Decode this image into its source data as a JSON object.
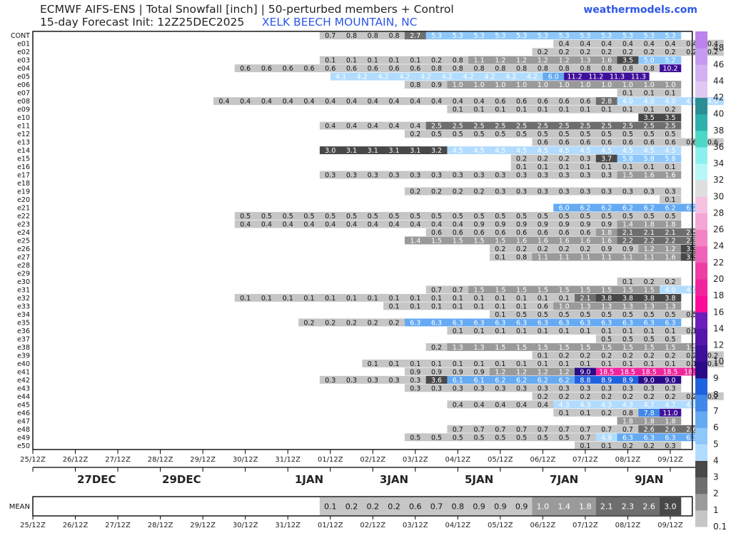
{
  "header": {
    "line1": "ECMWF AIFS-ENS | Total Snowfall [inch] | 50-perturbed members + Control",
    "line2_prefix": "15-day Forecast Init: 12Z25DEC2025",
    "location": "XELK BEECH MOUNTAIN, NC",
    "brand": "weathermodels.com"
  },
  "chart_data": {
    "type": "heatmap",
    "units": "inch",
    "x_ticks": [
      "25/12Z",
      "26/12Z",
      "27/12Z",
      "28/12Z",
      "29/12Z",
      "30/12Z",
      "31/12Z",
      "01/12Z",
      "02/12Z",
      "03/12Z",
      "04/12Z",
      "05/12Z",
      "06/12Z",
      "07/12Z",
      "08/12Z",
      "09/12Z"
    ],
    "date_labels": [
      {
        "label": "27DEC",
        "day": 2
      },
      {
        "label": "29DEC",
        "day": 4
      },
      {
        "label": "1JAN",
        "day": 7
      },
      {
        "label": "3JAN",
        "day": 9
      },
      {
        "label": "5JAN",
        "day": 11
      },
      {
        "label": "7JAN",
        "day": 13
      },
      {
        "label": "9JAN",
        "day": 15
      }
    ],
    "members": [
      {
        "name": "CONT",
        "start": 7.0,
        "values": [
          0.7,
          0.8,
          0.8,
          0.8,
          2.7,
          5.3,
          5.3,
          5.3,
          5.3,
          5.3,
          5.3,
          5.3,
          5.3,
          5.3,
          5.3,
          5.3,
          5.3
        ]
      },
      {
        "name": "e01",
        "start": 12.5,
        "values": [
          0.4,
          0.4,
          0.4,
          0.4,
          0.4,
          0.4,
          0.4,
          0.4
        ]
      },
      {
        "name": "e02",
        "start": 12.0,
        "values": [
          0.2,
          0.2,
          0.2,
          0.2,
          0.2,
          0.2,
          0.2,
          0.2,
          0.2
        ]
      },
      {
        "name": "e03",
        "start": 7.0,
        "values": [
          0.1,
          0.1,
          0.1,
          0.1,
          0.1,
          0.2,
          0.8,
          1.1,
          1.2,
          1.2,
          1.2,
          1.2,
          1.3,
          1.6,
          3.5,
          5.0,
          5.2
        ]
      },
      {
        "name": "e04",
        "start": 5.0,
        "values": [
          0.6,
          0.6,
          0.6,
          0.6,
          0.6,
          0.6,
          0.6,
          0.6,
          0.6,
          0.8,
          0.8,
          0.8,
          0.8,
          0.8,
          0.8,
          0.8,
          0.8,
          0.8,
          0.8,
          0.8,
          10.2
        ]
      },
      {
        "name": "e05",
        "start": 7.25,
        "values": [
          4.1,
          4.2,
          4.2,
          4.2,
          4.2,
          4.2,
          4.2,
          4.2,
          4.2,
          4.2,
          6.0,
          11.2,
          11.2,
          11.3,
          11.3
        ]
      },
      {
        "name": "e06",
        "start": 9.0,
        "values": [
          0.8,
          0.9,
          1.0,
          1.0,
          1.0,
          1.0,
          1.0,
          1.0,
          1.0,
          1.0,
          1.0,
          1.0,
          1.0
        ]
      },
      {
        "name": "e07",
        "start": 14.0,
        "values": [
          0.1,
          0.1,
          0.1
        ]
      },
      {
        "name": "e08",
        "start": 4.5,
        "values": [
          0.4,
          0.4,
          0.4,
          0.4,
          0.4,
          0.4,
          0.4,
          0.4,
          0.4,
          0.4,
          0.4,
          0.4,
          0.4,
          0.6,
          0.6,
          0.6,
          0.6,
          0.6,
          2.8,
          4.0,
          4.0,
          4.0,
          4.0,
          4.0
        ]
      },
      {
        "name": "e09",
        "start": 10.0,
        "values": [
          0.1,
          0.1,
          0.1,
          0.1,
          0.1,
          0.1,
          0.1,
          0.1,
          0.1,
          0.1,
          0.2
        ]
      },
      {
        "name": "e10",
        "start": 14.5,
        "values": [
          3.5,
          3.5
        ]
      },
      {
        "name": "e11",
        "start": 7.0,
        "values": [
          0.4,
          0.4,
          0.4,
          0.4,
          0.4,
          2.5,
          2.5,
          2.5,
          2.5,
          2.5,
          2.5,
          2.5,
          2.5,
          2.5,
          2.5,
          2.5,
          2.5
        ]
      },
      {
        "name": "e12",
        "start": 9.0,
        "values": [
          0.2,
          0.5,
          0.5,
          0.5,
          0.5,
          0.5,
          0.5,
          0.5,
          0.5,
          0.5,
          0.5,
          0.5,
          0.5
        ]
      },
      {
        "name": "e13",
        "start": 12.0,
        "values": [
          0.6,
          0.6,
          0.6,
          0.6,
          0.6,
          0.6,
          0.6,
          0.6,
          0.6
        ]
      },
      {
        "name": "e14",
        "start": 7.0,
        "values": [
          3.0,
          3.1,
          3.1,
          3.1,
          3.1,
          3.2,
          4.5,
          4.5,
          4.5,
          4.5,
          4.5,
          4.5,
          4.5,
          4.5,
          4.5,
          4.5,
          4.5
        ]
      },
      {
        "name": "e15",
        "start": 11.5,
        "values": [
          0.2,
          0.2,
          0.2,
          0.3,
          3.7,
          5.8,
          5.8,
          5.8
        ]
      },
      {
        "name": "e16",
        "start": 11.5,
        "values": [
          0.1,
          0.1,
          0.1,
          0.1,
          0.1,
          0.1,
          0.1,
          0.1
        ]
      },
      {
        "name": "e17",
        "start": 7.0,
        "values": [
          0.3,
          0.3,
          0.3,
          0.3,
          0.3,
          0.3,
          0.3,
          0.3,
          0.3,
          0.3,
          0.3,
          0.3,
          0.3,
          0.3,
          1.5,
          1.6,
          1.6
        ]
      },
      {
        "name": "e18",
        "start": null,
        "values": []
      },
      {
        "name": "e19",
        "start": 9.0,
        "values": [
          0.2,
          0.2,
          0.2,
          0.2,
          0.3,
          0.3,
          0.3,
          0.3,
          0.3,
          0.3,
          0.3,
          0.3,
          0.3
        ]
      },
      {
        "name": "e20",
        "start": 15.0,
        "values": [
          0.1
        ]
      },
      {
        "name": "e21",
        "start": 12.5,
        "values": [
          6.0,
          6.2,
          6.2,
          6.2,
          6.2,
          6.2,
          6.2
        ]
      },
      {
        "name": "e22",
        "start": 5.0,
        "values": [
          0.5,
          0.5,
          0.5,
          0.5,
          0.5,
          0.5,
          0.5,
          0.5,
          0.5,
          0.5,
          0.5,
          0.5,
          0.5,
          0.5,
          0.5,
          0.5,
          0.5,
          0.5,
          0.5,
          0.5,
          0.5
        ]
      },
      {
        "name": "e23",
        "start": 5.0,
        "values": [
          0.4,
          0.4,
          0.4,
          0.4,
          0.4,
          0.4,
          0.4,
          0.4,
          0.4,
          0.4,
          0.4,
          0.9,
          0.9,
          0.9,
          0.9,
          0.9,
          0.9,
          0.9,
          1.4,
          1.8,
          1.8
        ]
      },
      {
        "name": "e24",
        "start": 9.5,
        "values": [
          0.6,
          0.6,
          0.6,
          0.6,
          0.6,
          0.6,
          0.6,
          0.6,
          1.8,
          2.1,
          2.1,
          2.1,
          2.5
        ]
      },
      {
        "name": "e25",
        "start": 9.0,
        "values": [
          1.4,
          1.5,
          1.5,
          1.5,
          1.5,
          1.6,
          1.6,
          1.6,
          1.6,
          1.6,
          2.2,
          2.2,
          2.2,
          2.3
        ]
      },
      {
        "name": "e26",
        "start": 11.0,
        "values": [
          0.2,
          0.2,
          0.2,
          0.2,
          0.2,
          0.9,
          0.9,
          1.2,
          1.2,
          3.3
        ]
      },
      {
        "name": "e27",
        "start": 11.0,
        "values": [
          0.1,
          0.8,
          1.1,
          1.1,
          1.1,
          1.1,
          1.1,
          1.1,
          1.6,
          3.3
        ]
      },
      {
        "name": "e28",
        "start": null,
        "values": []
      },
      {
        "name": "e29",
        "start": null,
        "values": []
      },
      {
        "name": "e30",
        "start": 14.0,
        "values": [
          0.1,
          0.2,
          0.2
        ]
      },
      {
        "name": "e31",
        "start": 9.5,
        "values": [
          0.7,
          0.7,
          1.5,
          1.5,
          1.5,
          1.5,
          1.5,
          1.5,
          1.5,
          1.5,
          1.5,
          4.0,
          4.0
        ]
      },
      {
        "name": "e32",
        "start": 5.0,
        "values": [
          0.1,
          0.1,
          0.1,
          0.1,
          0.1,
          0.1,
          0.1,
          0.1,
          0.1,
          0.1,
          0.1,
          0.1,
          0.1,
          0.1,
          0.1,
          0.1,
          2.1,
          3.8,
          3.8,
          3.8,
          3.8
        ]
      },
      {
        "name": "e33",
        "start": 8.5,
        "values": [
          0.1,
          0.1,
          0.1,
          0.1,
          0.1,
          0.1,
          0.1,
          0.6,
          1.0,
          1.3,
          1.3,
          1.3,
          1.3,
          1.3
        ]
      },
      {
        "name": "e34",
        "start": 11.0,
        "values": [
          0.1,
          0.5,
          0.5,
          0.5,
          0.5,
          0.5,
          0.5,
          0.5,
          0.5,
          0.5
        ]
      },
      {
        "name": "e35",
        "start": 6.5,
        "values": [
          0.2,
          0.2,
          0.2,
          0.2,
          0.2,
          6.3,
          6.3,
          6.3,
          6.3,
          6.3,
          6.3,
          6.3,
          6.3,
          6.3,
          6.3,
          6.3,
          6.3,
          6.3
        ]
      },
      {
        "name": "e36",
        "start": 10.0,
        "values": [
          0.1,
          0.1,
          0.1,
          0.1,
          0.1,
          0.1,
          0.1,
          0.1,
          0.1,
          0.1,
          0.1,
          0.1
        ]
      },
      {
        "name": "e37",
        "start": 13.5,
        "values": [
          0.5,
          0.5,
          0.5,
          0.5
        ]
      },
      {
        "name": "e38",
        "start": 9.5,
        "values": [
          0.2,
          1.3,
          1.3,
          1.5,
          1.5,
          1.5,
          1.5,
          1.5,
          1.5,
          1.5,
          1.5,
          1.5,
          1.5
        ]
      },
      {
        "name": "e39",
        "start": 12.0,
        "values": [
          0.1,
          0.2,
          0.2,
          0.2,
          0.2,
          0.2,
          0.2,
          0.2,
          0.2
        ]
      },
      {
        "name": "e40",
        "start": 8.0,
        "values": [
          0.1,
          0.1,
          0.1,
          0.1,
          0.1,
          0.1,
          0.1,
          0.1,
          0.1,
          0.1,
          0.1,
          0.1,
          0.1,
          0.1,
          0.1,
          0.1,
          0.1
        ]
      },
      {
        "name": "e41",
        "start": 9.0,
        "values": [
          0.9,
          0.9,
          0.9,
          0.9,
          1.2,
          1.2,
          1.2,
          1.2,
          9.0,
          18.5,
          18.5,
          18.5,
          18.5,
          18.0
        ]
      },
      {
        "name": "e42",
        "start": 7.0,
        "values": [
          0.3,
          0.3,
          0.3,
          0.3,
          0.3,
          3.6,
          6.1,
          6.1,
          6.2,
          6.2,
          6.2,
          6.2,
          8.8,
          8.9,
          8.9,
          9.0,
          9.0
        ]
      },
      {
        "name": "e43",
        "start": 9.0,
        "values": [
          0.3,
          0.3,
          0.3,
          0.3,
          0.3,
          0.3,
          0.3,
          0.3,
          0.3,
          0.3,
          0.3,
          0.3,
          0.3
        ]
      },
      {
        "name": "e44",
        "start": 12.0,
        "values": [
          0.2,
          0.2,
          0.2,
          0.2,
          0.2,
          0.2,
          0.2,
          0.2,
          0.2
        ]
      },
      {
        "name": "e45",
        "start": 10.0,
        "values": [
          0.4,
          0.4,
          0.4,
          0.4,
          0.4,
          4.3,
          4.3,
          4.3,
          4.3,
          4.7,
          4.7,
          4.7
        ]
      },
      {
        "name": "e46",
        "start": 12.5,
        "values": [
          0.1,
          0.1,
          0.2,
          0.8,
          7.8,
          11.0
        ]
      },
      {
        "name": "e47",
        "start": 14.0,
        "values": [
          1.8,
          1.8,
          1.8
        ]
      },
      {
        "name": "e48",
        "start": 10.0,
        "values": [
          0.7,
          0.7,
          0.7,
          0.7,
          0.7,
          0.7,
          0.7,
          0.7,
          0.7,
          2.6,
          2.6,
          2.6
        ]
      },
      {
        "name": "e49",
        "start": 9.0,
        "values": [
          0.5,
          0.5,
          0.5,
          0.5,
          0.5,
          0.5,
          0.5,
          0.5,
          0.7,
          4.9,
          6.3,
          6.3,
          6.3,
          6.3
        ]
      },
      {
        "name": "e50",
        "start": 13.0,
        "values": [
          0.1,
          0.1,
          0.2,
          0.2,
          0.3
        ]
      }
    ],
    "mean": {
      "label": "MEAN",
      "start": 7.0,
      "values": [
        0.1,
        0.2,
        0.2,
        0.2,
        0.6,
        0.7,
        0.8,
        0.9,
        0.9,
        0.9,
        1.0,
        1.4,
        1.8,
        2.1,
        2.3,
        2.6,
        3.0
      ]
    },
    "colorbar": {
      "levels": [
        0.1,
        1,
        2,
        3,
        4,
        5,
        6,
        7,
        8,
        9,
        10,
        12,
        14,
        16,
        18,
        20,
        22,
        24,
        26,
        28,
        30,
        32,
        34,
        36,
        38,
        40,
        42,
        44,
        46,
        48
      ],
      "colors": [
        "#c6c6c6",
        "#9a9a9a",
        "#6e6e6e",
        "#484848",
        "#b2dcff",
        "#8ec8fb",
        "#65aaf2",
        "#3f88ea",
        "#1f62e0",
        "#2a0a86",
        "#3e0f98",
        "#5516aa",
        "#6c1eba",
        "#ff0a9a",
        "#f2249c",
        "#ee3ea4",
        "#ef62b8",
        "#f284c6",
        "#f4a6d6",
        "#f6c2e2",
        "#dedede",
        "#b7f7f5",
        "#8cf1ee",
        "#4cd8c6",
        "#2eb1aa",
        "#2a8e92",
        "#dfc8f1",
        "#d3b0f0",
        "#c69af1",
        "#bb83ed",
        "#ad70ea"
      ],
      "tick_labels": [
        "0.1",
        "1",
        "2",
        "4",
        "6",
        "8",
        "10",
        "12",
        "14",
        "16",
        "18",
        "20",
        "22",
        "24",
        "26",
        "28",
        "30",
        "32",
        "34",
        "36",
        "38",
        "40",
        "42",
        "44",
        "46",
        "48",
        "3",
        "5",
        "7",
        "9"
      ]
    }
  }
}
